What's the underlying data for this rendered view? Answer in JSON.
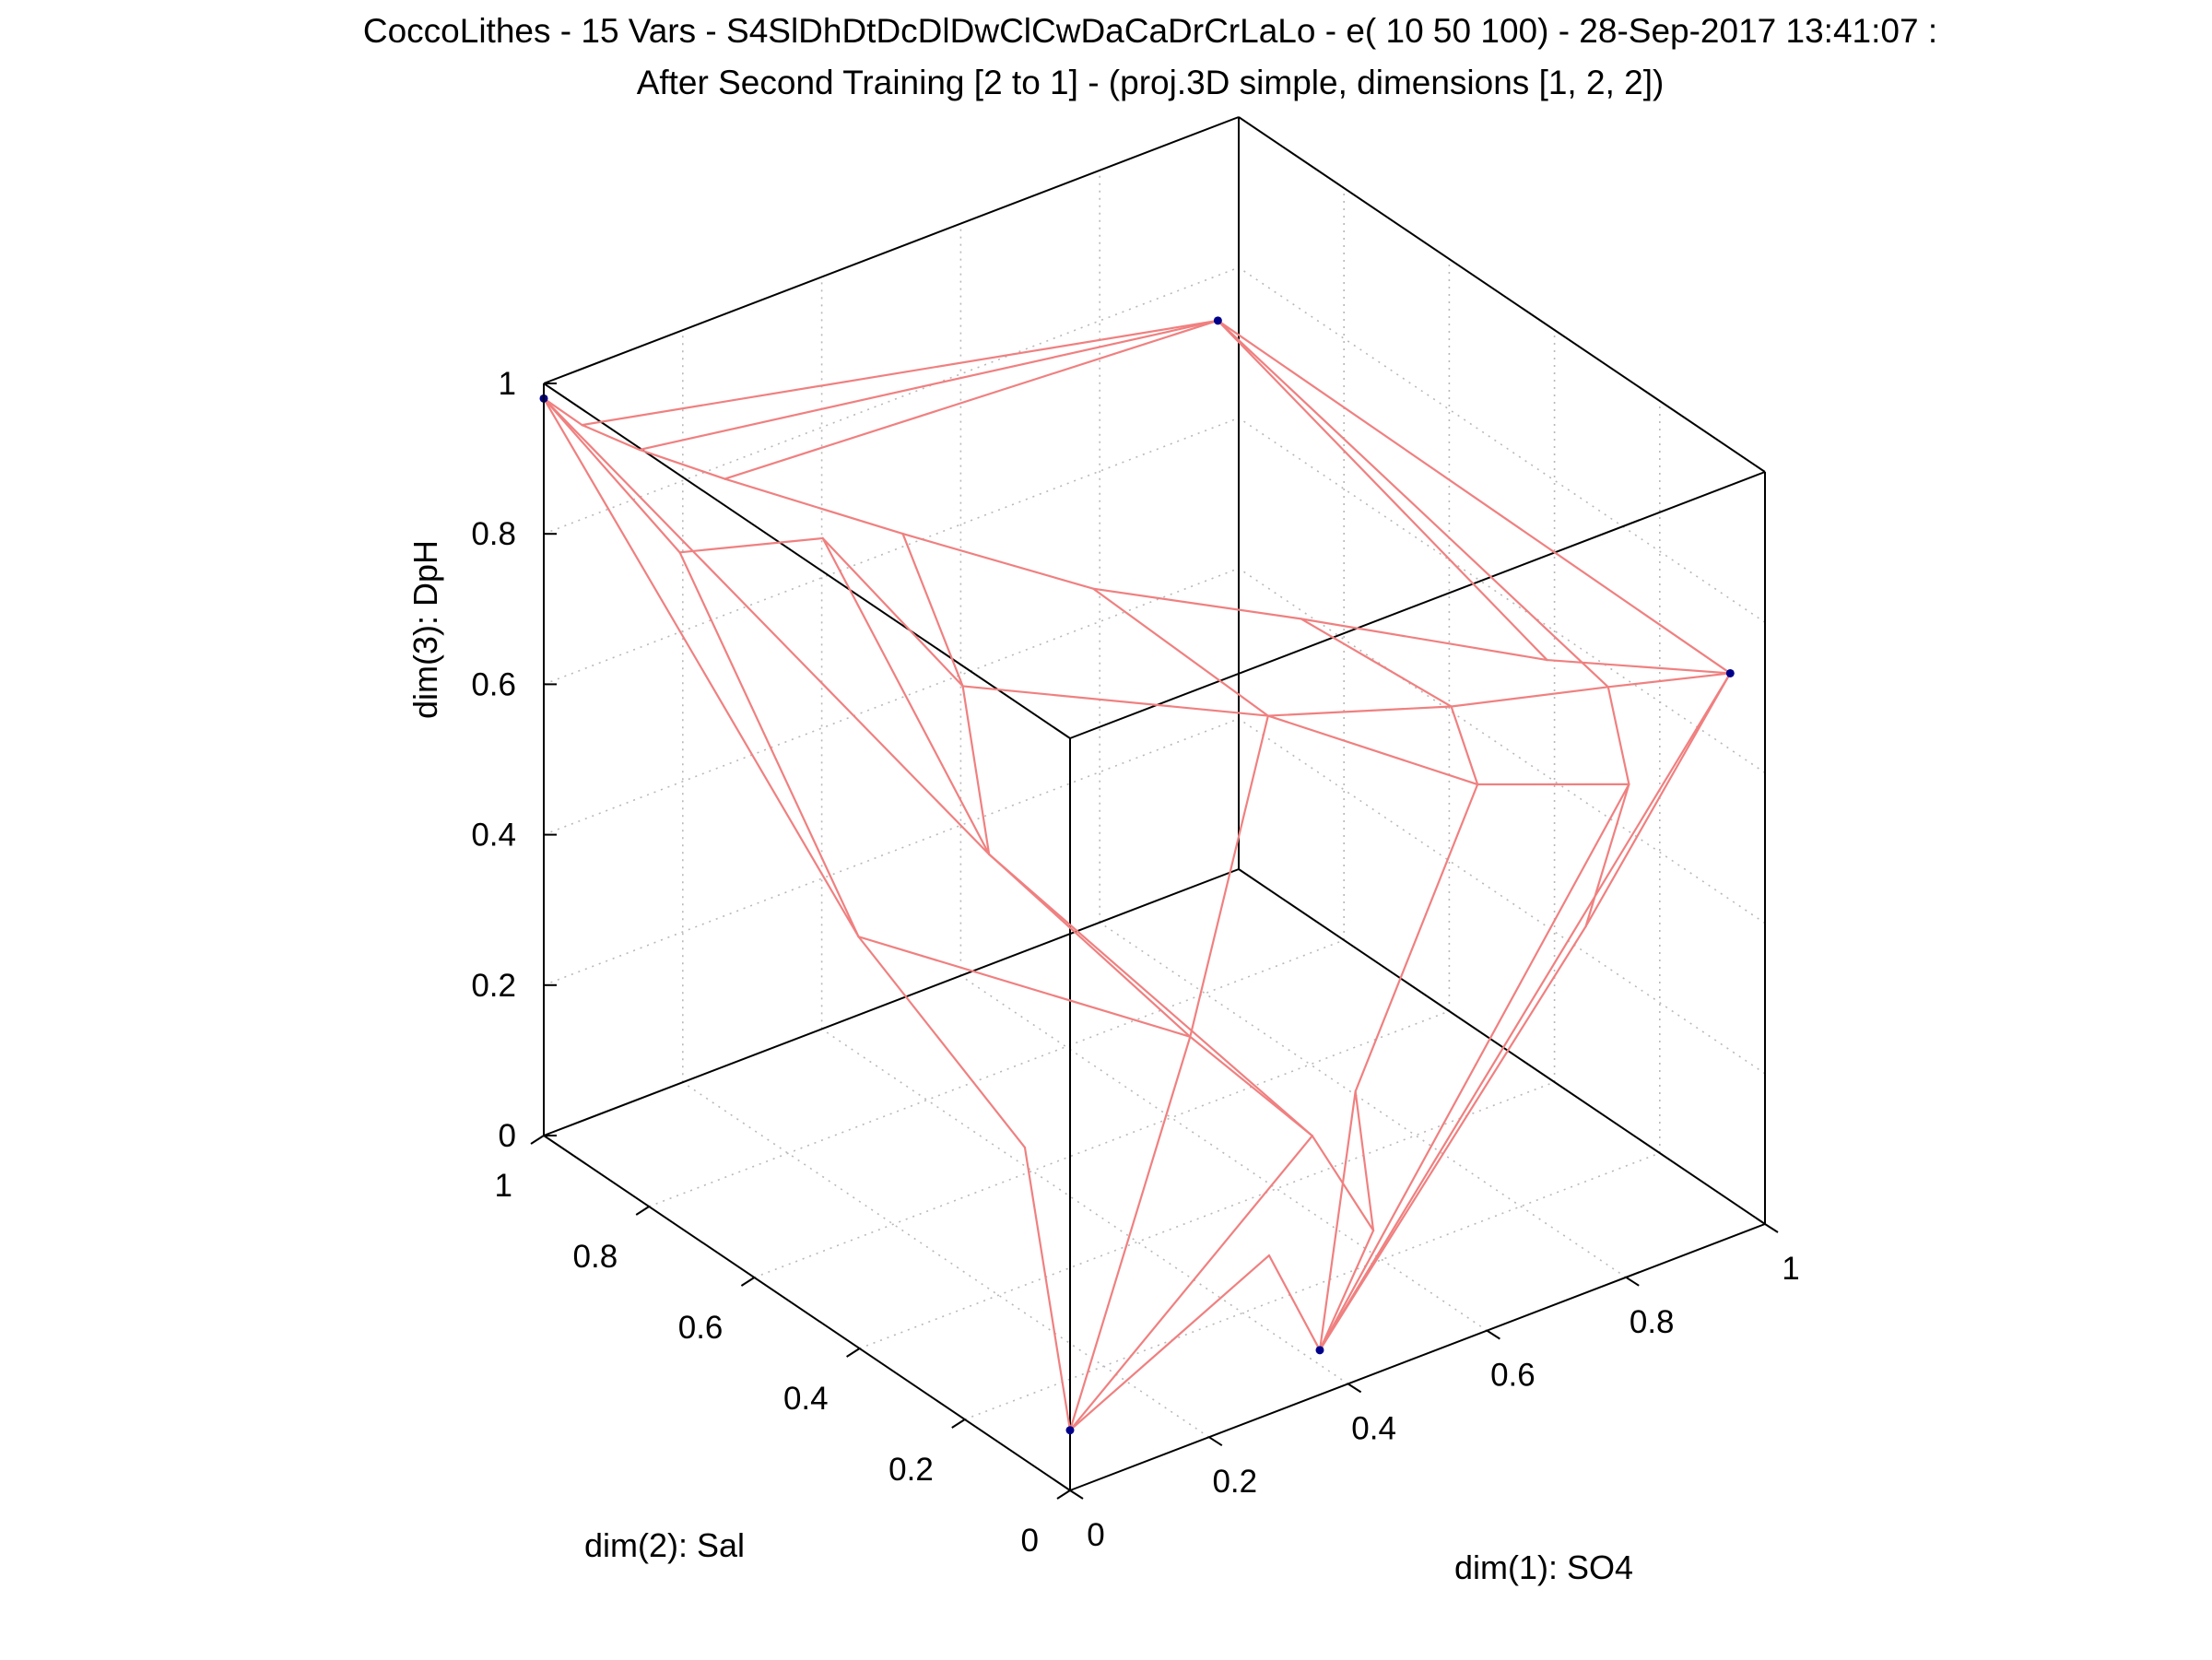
{
  "chart_data": {
    "type": "3d-line",
    "title_line1": "CoccoLithes - 15 Vars - S4SlDhDtDcDlDwClCwDaCaDrCrLaLo - e( 10 50 100) - 28-Sep-2017 13:41:07 :",
    "title_line2": "After Second Training [2 to 1] - (proj.3D simple, dimensions [1, 2, 2])",
    "xlabel": "dim(1): SO4",
    "ylabel": "dim(2): Sal",
    "zlabel": "dim(3): DpH",
    "xlim": [
      0,
      1
    ],
    "ylim": [
      0,
      1
    ],
    "zlim": [
      0,
      1
    ],
    "x_ticks": [
      "0",
      "0.2",
      "0.4",
      "0.6",
      "0.8",
      "1"
    ],
    "y_ticks": [
      "0",
      "0.2",
      "0.4",
      "0.6",
      "0.8",
      "1"
    ],
    "z_ticks": [
      "0",
      "0.2",
      "0.4",
      "0.6",
      "0.8",
      "1"
    ],
    "grid": true,
    "line_color": "#f08080",
    "marker_color": "#00008b",
    "nodes": [
      {
        "id": "a",
        "x": 0.0,
        "y": 1.0,
        "z": 0.98
      },
      {
        "id": "b",
        "x": 0.95,
        "y": 0.0,
        "z": 0.75
      },
      {
        "id": "c",
        "x": 0.97,
        "y": 1.0,
        "z": 0.74
      },
      {
        "id": "d",
        "x": 0.0,
        "y": 0.0,
        "z": 0.08
      },
      {
        "id": "e",
        "x": 0.42,
        "y": 0.08,
        "z": 0.0
      },
      {
        "id": "f",
        "x": 0.04,
        "y": 0.98,
        "z": 0.94
      },
      {
        "id": "g",
        "x": 0.1,
        "y": 0.95,
        "z": 0.9
      },
      {
        "id": "h",
        "x": 0.2,
        "y": 0.92,
        "z": 0.84
      },
      {
        "id": "i",
        "x": 0.35,
        "y": 0.78,
        "z": 0.78
      },
      {
        "id": "j",
        "x": 0.45,
        "y": 0.55,
        "z": 0.78
      },
      {
        "id": "k",
        "x": 0.62,
        "y": 0.38,
        "z": 0.76
      },
      {
        "id": "l",
        "x": 0.8,
        "y": 0.15,
        "z": 0.75
      },
      {
        "id": "m",
        "x": 0.12,
        "y": 0.9,
        "z": 0.78
      },
      {
        "id": "n",
        "x": 0.25,
        "y": 0.8,
        "z": 0.8
      },
      {
        "id": "o",
        "x": 0.3,
        "y": 0.6,
        "z": 0.68
      },
      {
        "id": "p",
        "x": 0.55,
        "y": 0.35,
        "z": 0.67
      },
      {
        "id": "q",
        "x": 0.7,
        "y": 0.2,
        "z": 0.7
      },
      {
        "id": "r",
        "x": 0.85,
        "y": 0.1,
        "z": 0.72
      },
      {
        "id": "s",
        "x": 0.7,
        "y": 0.15,
        "z": 0.62
      },
      {
        "id": "t",
        "x": 0.88,
        "y": 0.1,
        "z": 0.58
      },
      {
        "id": "u",
        "x": 0.3,
        "y": 0.55,
        "z": 0.48
      },
      {
        "id": "v",
        "x": 0.15,
        "y": 0.6,
        "z": 0.4
      },
      {
        "id": "w",
        "x": 0.4,
        "y": 0.3,
        "z": 0.32
      },
      {
        "id": "x",
        "x": 0.5,
        "y": 0.2,
        "z": 0.2
      },
      {
        "id": "y",
        "x": 0.55,
        "y": 0.15,
        "z": 0.08
      },
      {
        "id": "z",
        "x": 0.6,
        "y": 0.25,
        "z": 0.2
      },
      {
        "id": "aa",
        "x": 0.4,
        "y": 0.15,
        "z": 0.1
      },
      {
        "id": "ab",
        "x": 0.2,
        "y": 0.35,
        "z": 0.22
      },
      {
        "id": "ac",
        "x": 0.78,
        "y": 0.05,
        "z": 0.45
      }
    ],
    "edges": [
      [
        "a",
        "f"
      ],
      [
        "f",
        "g"
      ],
      [
        "g",
        "h"
      ],
      [
        "h",
        "i"
      ],
      [
        "i",
        "j"
      ],
      [
        "j",
        "k"
      ],
      [
        "k",
        "l"
      ],
      [
        "l",
        "b"
      ],
      [
        "a",
        "m"
      ],
      [
        "m",
        "n"
      ],
      [
        "n",
        "o"
      ],
      [
        "o",
        "p"
      ],
      [
        "p",
        "q"
      ],
      [
        "q",
        "r"
      ],
      [
        "r",
        "b"
      ],
      [
        "f",
        "c"
      ],
      [
        "g",
        "c"
      ],
      [
        "h",
        "c"
      ],
      [
        "c",
        "b"
      ],
      [
        "c",
        "r"
      ],
      [
        "c",
        "l"
      ],
      [
        "a",
        "v"
      ],
      [
        "v",
        "ab"
      ],
      [
        "ab",
        "d"
      ],
      [
        "a",
        "u"
      ],
      [
        "u",
        "w"
      ],
      [
        "w",
        "d"
      ],
      [
        "m",
        "v"
      ],
      [
        "n",
        "u"
      ],
      [
        "o",
        "u"
      ],
      [
        "i",
        "o"
      ],
      [
        "j",
        "p"
      ],
      [
        "k",
        "q"
      ],
      [
        "p",
        "s"
      ],
      [
        "q",
        "s"
      ],
      [
        "s",
        "t"
      ],
      [
        "r",
        "t"
      ],
      [
        "t",
        "ac"
      ],
      [
        "b",
        "ac"
      ],
      [
        "s",
        "z"
      ],
      [
        "p",
        "w"
      ],
      [
        "w",
        "x"
      ],
      [
        "x",
        "d"
      ],
      [
        "x",
        "y"
      ],
      [
        "y",
        "e"
      ],
      [
        "z",
        "y"
      ],
      [
        "z",
        "e"
      ],
      [
        "ac",
        "e"
      ],
      [
        "t",
        "e"
      ],
      [
        "b",
        "e"
      ],
      [
        "d",
        "aa"
      ],
      [
        "aa",
        "e"
      ],
      [
        "u",
        "x"
      ],
      [
        "v",
        "w"
      ]
    ],
    "markers": [
      "a",
      "b",
      "c",
      "d",
      "e"
    ]
  }
}
